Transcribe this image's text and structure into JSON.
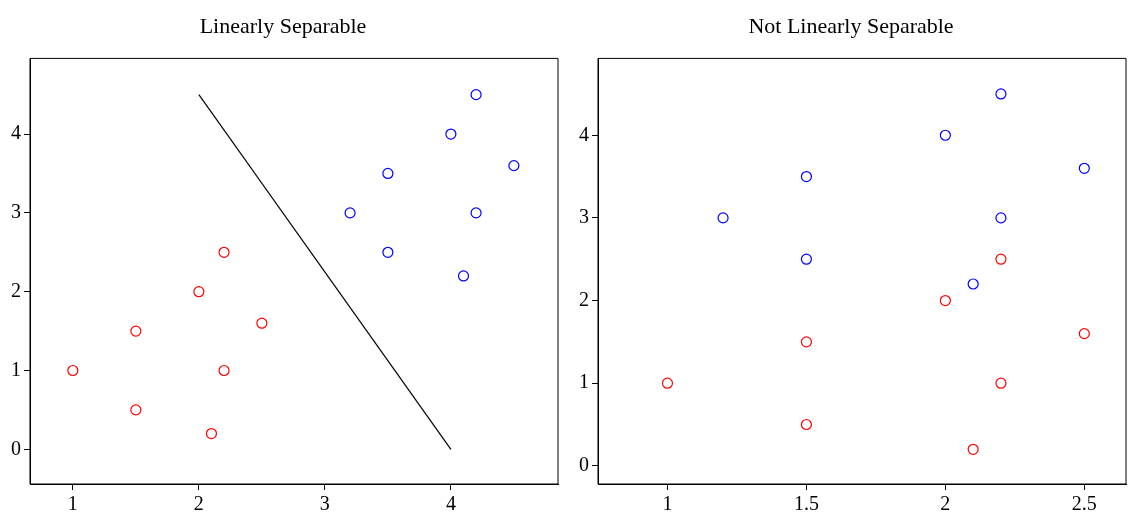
{
  "chart_data": [
    {
      "type": "scatter",
      "title": "Linearly Separable",
      "xlim": [
        0.66,
        4.85
      ],
      "ylim": [
        -0.44,
        4.96
      ],
      "xticks": [
        1,
        2,
        3,
        4
      ],
      "yticks": [
        0,
        1,
        2,
        3,
        4
      ],
      "grid": false,
      "legend": false,
      "marker": "circle",
      "series": [
        {
          "color": "#ff0000",
          "x": [
            1,
            1.5,
            1.5,
            2,
            2.2,
            2.5,
            2.2,
            2.1
          ],
          "values": [
            1,
            0.5,
            1.5,
            2,
            2.5,
            1.6,
            1,
            0.2
          ]
        },
        {
          "color": "#0000ff",
          "x": [
            3.2,
            3.5,
            3.5,
            4,
            4.2,
            4.5,
            4.2,
            4.1
          ],
          "values": [
            3,
            3.5,
            2.5,
            4,
            4.5,
            3.6,
            3,
            2.2
          ]
        },
        {
          "type": "line",
          "marker": "none",
          "color": "#000000",
          "x": [
            2,
            4
          ],
          "values": [
            4.5,
            0
          ]
        }
      ]
    },
    {
      "type": "scatter",
      "title": "Not Linearly Separable",
      "xlim": [
        0.75,
        2.65
      ],
      "ylim": [
        -0.22,
        4.93
      ],
      "xticks": [
        1,
        1.5,
        2,
        2.5
      ],
      "yticks": [
        0,
        1,
        2,
        3,
        4
      ],
      "grid": false,
      "legend": false,
      "marker": "circle",
      "series": [
        {
          "color": "#0000ff",
          "x": [
            1.2,
            1.5,
            1.5,
            2,
            2.2,
            2.5,
            2.2,
            2.1
          ],
          "values": [
            3,
            3.5,
            2.5,
            4,
            4.5,
            3.6,
            3,
            2.2
          ]
        },
        {
          "color": "#ff0000",
          "x": [
            1,
            1.5,
            1.5,
            2,
            2.2,
            2.5,
            2.2,
            2.1
          ],
          "values": [
            1,
            0.5,
            1.5,
            2,
            2.5,
            1.6,
            1,
            0.2
          ]
        }
      ]
    }
  ]
}
